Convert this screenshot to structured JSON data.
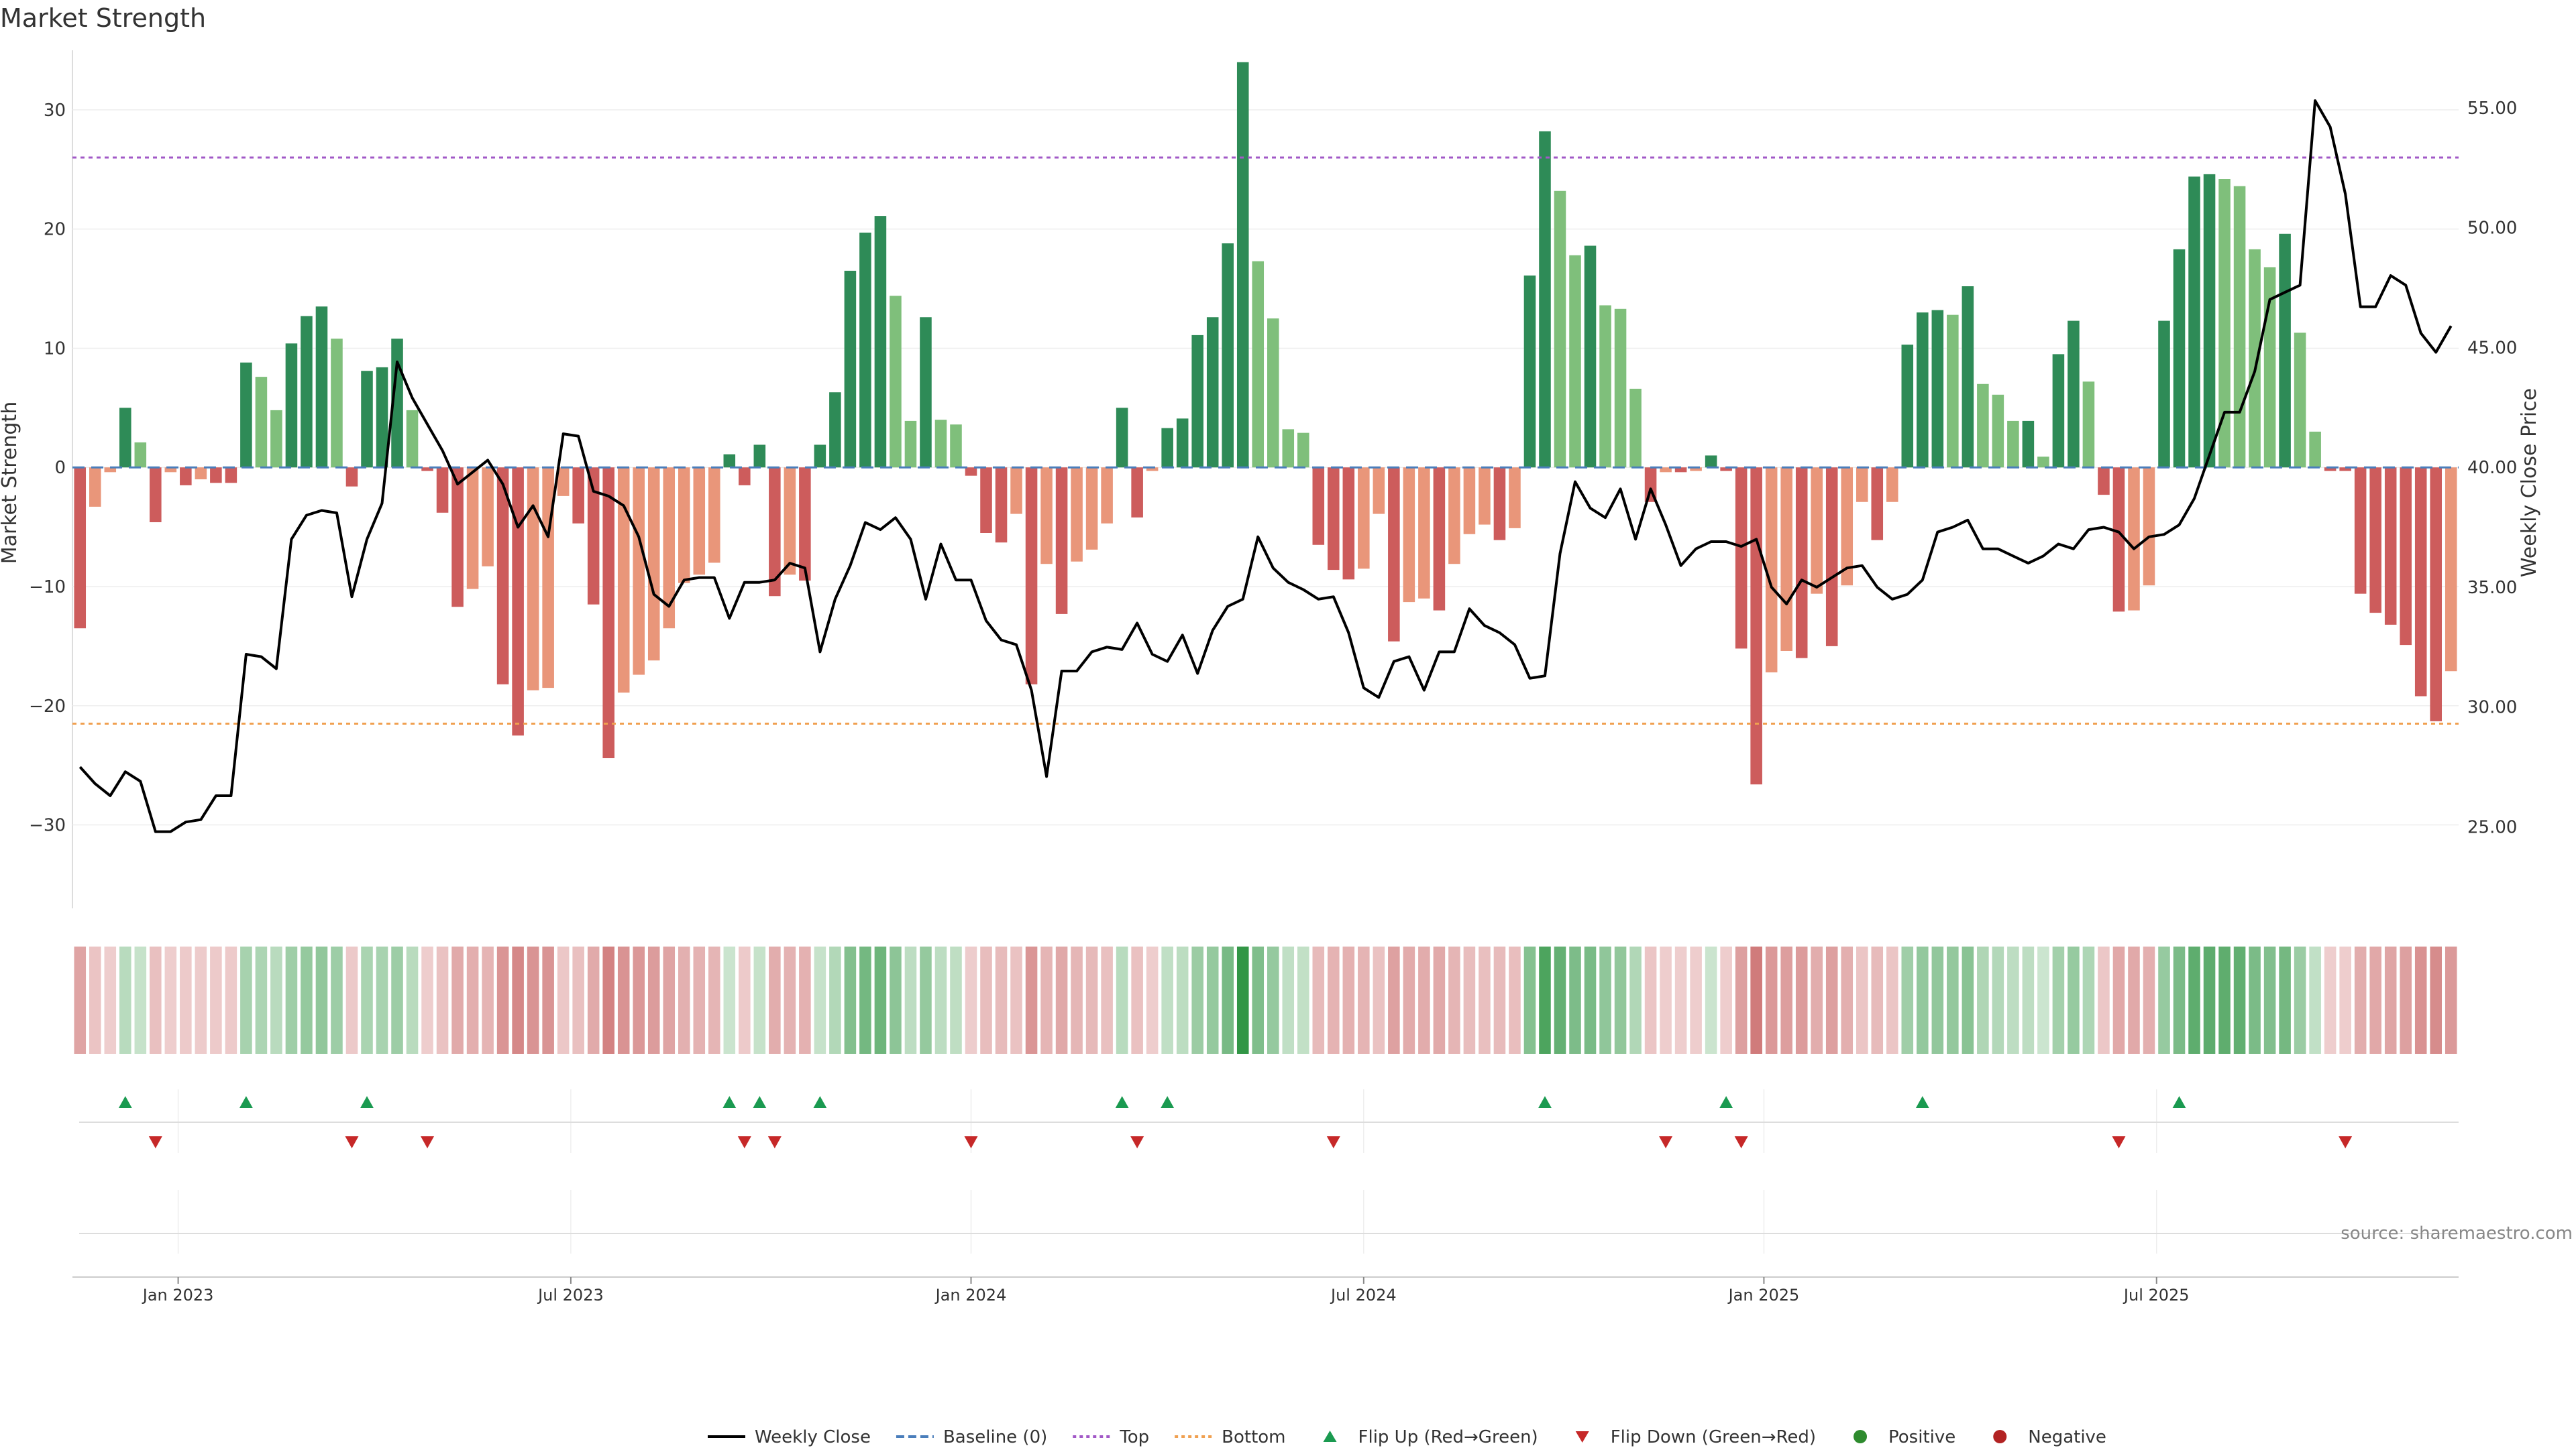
{
  "chart_data": {
    "type": "bar",
    "title": "Market Strength",
    "ylabel": "Market Strength",
    "y2label": "Weekly Close Price",
    "ylim": [
      -37,
      35
    ],
    "y2lim": [
      21.6,
      57.4
    ],
    "yticks": [
      "30",
      "20",
      "10",
      "0",
      "−10",
      "−20",
      "−30"
    ],
    "ytick_values": [
      30,
      20,
      10,
      0,
      -10,
      -20,
      -30
    ],
    "y2ticks": [
      "55.00",
      "50.00",
      "45.00",
      "40.00",
      "35.00",
      "30.00",
      "25.00"
    ],
    "y2tick_values": [
      55,
      50,
      45,
      40,
      35,
      30,
      25
    ],
    "x_tick_labels": [
      "Jan 2023",
      "Jul 2023",
      "Jan 2024",
      "Jul 2024",
      "Jan 2025",
      "Jul 2025"
    ],
    "x_tick_weeks": [
      7,
      33,
      59.5,
      85.5,
      112,
      138
    ],
    "top_line": 26,
    "bottom_line": -21.5,
    "strength_values": [
      -13.5,
      -3.3,
      -0.4,
      5.0,
      2.1,
      -4.6,
      -0.4,
      -1.5,
      -1.0,
      -1.3,
      -1.3,
      8.8,
      7.6,
      4.8,
      10.4,
      12.7,
      13.5,
      10.8,
      -1.6,
      8.1,
      8.4,
      10.8,
      4.8,
      -0.3,
      -3.8,
      -11.7,
      -10.2,
      -8.3,
      -18.2,
      -22.5,
      -18.7,
      -18.5,
      -2.4,
      -4.7,
      -11.5,
      -24.4,
      -18.9,
      -17.4,
      -16.2,
      -13.5,
      -9.7,
      -9.0,
      -8.0,
      1.1,
      -1.5,
      1.9,
      -10.8,
      -9.0,
      -9.5,
      1.9,
      6.3,
      16.5,
      19.7,
      21.1,
      14.4,
      3.9,
      12.6,
      4.0,
      3.6,
      -0.7,
      -5.5,
      -6.3,
      -3.9,
      -18.2,
      -8.1,
      -12.3,
      -7.9,
      -6.9,
      -4.7,
      5.0,
      -4.2,
      -0.3,
      3.3,
      4.1,
      11.1,
      12.6,
      18.8,
      34.0,
      17.3,
      12.5,
      3.2,
      2.9,
      -6.5,
      -8.6,
      -9.4,
      -8.5,
      -3.9,
      -14.6,
      -11.3,
      -11.0,
      -12.0,
      -8.1,
      -5.6,
      -4.8,
      -6.1,
      -5.1,
      16.1,
      28.2,
      23.2,
      17.8,
      18.6,
      13.6,
      13.3,
      6.6,
      -2.9,
      -0.4,
      -0.4,
      -0.3,
      1.0,
      -0.3,
      -15.2,
      -26.6,
      -17.2,
      -15.4,
      -16.0,
      -10.6,
      -15.0,
      -9.9,
      -2.9,
      -6.1,
      -2.9,
      10.3,
      13.0,
      13.2,
      12.8,
      15.2,
      7.0,
      6.1,
      3.9,
      3.9,
      0.9,
      9.5,
      12.3,
      7.2,
      -2.3,
      -12.1,
      -12.0,
      -9.9,
      12.3,
      18.3,
      24.4,
      24.6,
      24.2,
      23.6,
      18.3,
      16.8,
      19.6,
      11.3,
      3.0,
      -0.3,
      -0.3,
      -10.6,
      -12.2,
      -13.2,
      -14.9,
      -19.2,
      -21.3,
      -17.1
    ],
    "close_values": [
      27.5,
      26.8,
      26.3,
      27.3,
      26.9,
      24.8,
      24.8,
      25.2,
      25.3,
      26.3,
      26.3,
      32.2,
      32.1,
      31.6,
      37.0,
      38.0,
      38.2,
      38.1,
      34.6,
      37.0,
      38.5,
      44.4,
      42.9,
      41.8,
      40.7,
      39.3,
      39.8,
      40.3,
      39.3,
      37.5,
      38.4,
      37.1,
      41.4,
      41.3,
      39.0,
      38.8,
      38.4,
      37.1,
      34.7,
      34.2,
      35.3,
      35.4,
      35.4,
      33.7,
      35.2,
      35.2,
      35.3,
      36.0,
      35.8,
      32.3,
      34.5,
      35.9,
      37.7,
      37.4,
      37.9,
      37.0,
      34.5,
      36.8,
      35.3,
      35.3,
      33.6,
      32.8,
      32.6,
      30.7,
      27.1,
      31.5,
      31.5,
      32.3,
      32.5,
      32.4,
      33.5,
      32.2,
      31.9,
      33.0,
      31.4,
      33.2,
      34.2,
      34.5,
      37.1,
      35.8,
      35.2,
      34.9,
      34.5,
      34.6,
      33.1,
      30.8,
      30.4,
      31.9,
      32.1,
      30.7,
      32.3,
      32.3,
      34.1,
      33.4,
      33.1,
      32.6,
      31.2,
      31.3,
      36.4,
      39.4,
      38.3,
      37.9,
      39.1,
      37.0,
      39.1,
      37.6,
      35.9,
      36.6,
      36.9,
      36.9,
      36.7,
      37.0,
      35.0,
      34.3,
      35.3,
      35.0,
      35.4,
      35.8,
      35.9,
      35.0,
      34.5,
      34.7,
      35.3,
      37.3,
      37.5,
      37.8,
      36.6,
      36.6,
      36.3,
      36.0,
      36.3,
      36.8,
      36.6,
      37.4,
      37.5,
      37.3,
      36.6,
      37.1,
      37.2,
      37.6,
      38.7,
      40.5,
      42.3,
      42.3,
      44.0,
      47.0,
      47.3,
      47.6,
      55.3,
      54.2,
      51.4,
      46.7,
      46.7,
      48.0,
      47.6,
      45.6,
      44.8,
      45.9
    ],
    "heat_strip_values": [
      -13.5,
      -3.3,
      -0.4,
      5.0,
      2.1,
      -4.6,
      -0.4,
      -1.5,
      -1.0,
      -1.3,
      -1.3,
      8.8,
      7.6,
      4.8,
      10.4,
      12.7,
      13.5,
      10.8,
      -1.6,
      8.1,
      8.4,
      10.8,
      4.8,
      -0.3,
      -3.8,
      -11.7,
      -10.2,
      -8.3,
      -18.2,
      -22.5,
      -18.7,
      -18.5,
      -2.4,
      -4.7,
      -11.5,
      -24.4,
      -18.9,
      -17.4,
      -16.2,
      -13.5,
      -9.7,
      -9.0,
      -8.0,
      1.1,
      -1.5,
      1.9,
      -10.8,
      -9.0,
      -9.5,
      1.9,
      6.3,
      16.5,
      19.7,
      21.1,
      14.4,
      3.9,
      12.6,
      4.0,
      3.6,
      -0.7,
      -5.5,
      -6.3,
      -3.9,
      -18.2,
      -8.1,
      -12.3,
      -7.9,
      -6.9,
      -4.7,
      5.0,
      -4.2,
      -0.3,
      3.3,
      4.1,
      11.1,
      12.6,
      18.8,
      34.0,
      17.3,
      12.5,
      3.2,
      2.9,
      -6.5,
      -8.6,
      -9.4,
      -8.5,
      -3.9,
      -14.6,
      -11.3,
      -11.0,
      -12.0,
      -8.1,
      -5.6,
      -4.8,
      -6.1,
      -5.1,
      16.1,
      28.2,
      23.2,
      17.8,
      18.6,
      13.6,
      13.3,
      6.6,
      -2.9,
      -0.4,
      -0.4,
      -0.3,
      1.0,
      -0.3,
      -15.2,
      -26.6,
      -17.2,
      -15.4,
      -16.0,
      -10.6,
      -15.0,
      -9.9,
      -2.9,
      -6.1,
      -2.9,
      10.3,
      13.0,
      13.2,
      12.8,
      15.2,
      7.0,
      6.1,
      3.9,
      3.9,
      0.9,
      9.5,
      12.3,
      7.2,
      -2.3,
      -12.1,
      -12.0,
      -9.9,
      12.3,
      18.3,
      24.4,
      24.6,
      24.2,
      23.6,
      18.3,
      16.8,
      19.6,
      11.3,
      3.0,
      -0.3,
      -0.3,
      -10.6,
      -12.2,
      -13.2,
      -14.9,
      -19.2,
      -21.3,
      -17.1
    ],
    "flip_up_weeks": [
      3,
      11,
      19,
      43,
      45,
      49,
      69,
      72,
      97,
      109,
      122,
      139
    ],
    "flip_down_weeks": [
      5,
      18,
      23,
      44,
      46,
      59,
      70,
      83,
      105,
      110,
      135,
      150
    ],
    "source": "source: sharemaestro.com",
    "legend": [
      "Weekly Close",
      "Baseline (0)",
      "Top",
      "Bottom",
      "Flip Up (Red→Green)",
      "Flip Down (Green→Red)",
      "Positive",
      "Negative"
    ],
    "colors": {
      "pos_strong": "#2e8b57",
      "pos_light": "#7fbf7b",
      "neg_strong": "#cd5c5c",
      "neg_light": "#e9967a",
      "close_line": "#000000",
      "baseline": "#4a7ebb",
      "top": "#a259c7",
      "bottom": "#f0a050",
      "flip_up": "#1a9a50",
      "flip_down": "#c62828",
      "positive_dot": "#2e8b2e",
      "negative_dot": "#b22222"
    }
  }
}
